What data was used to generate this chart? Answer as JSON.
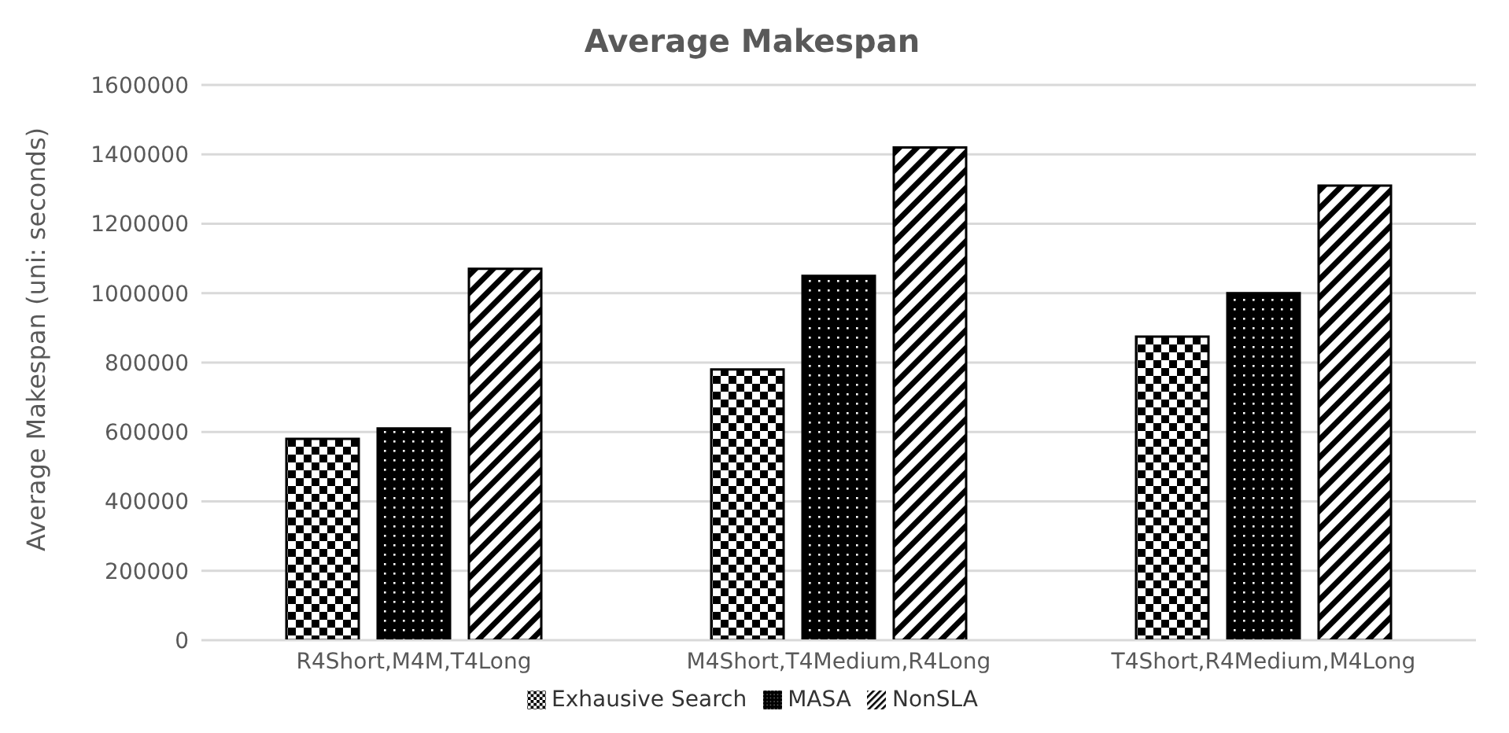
{
  "chart_data": {
    "type": "bar",
    "title": "Average Makespan",
    "ylabel": "Average Makespan (uni: seconds)",
    "categories": [
      "R4Short,M4M,T4Long",
      "M4Short,T4Medium,R4Long",
      "T4Short,R4Medium,M4Long"
    ],
    "series": [
      {
        "name": "Exhausive Search",
        "color": "#000000",
        "values": [
          580000,
          780000,
          875000
        ]
      },
      {
        "name": "MASA",
        "color": "#000000",
        "values": [
          610000,
          1050000,
          1000000
        ]
      },
      {
        "name": "NonSLA",
        "color": "#000000",
        "values": [
          1070000,
          1420000,
          1310000
        ]
      }
    ],
    "ylim": [
      0,
      1600000
    ],
    "yticks": [
      0,
      200000,
      400000,
      600000,
      800000,
      1000000,
      1200000,
      1400000,
      1600000
    ],
    "grid": "y",
    "legend": "bottom"
  }
}
